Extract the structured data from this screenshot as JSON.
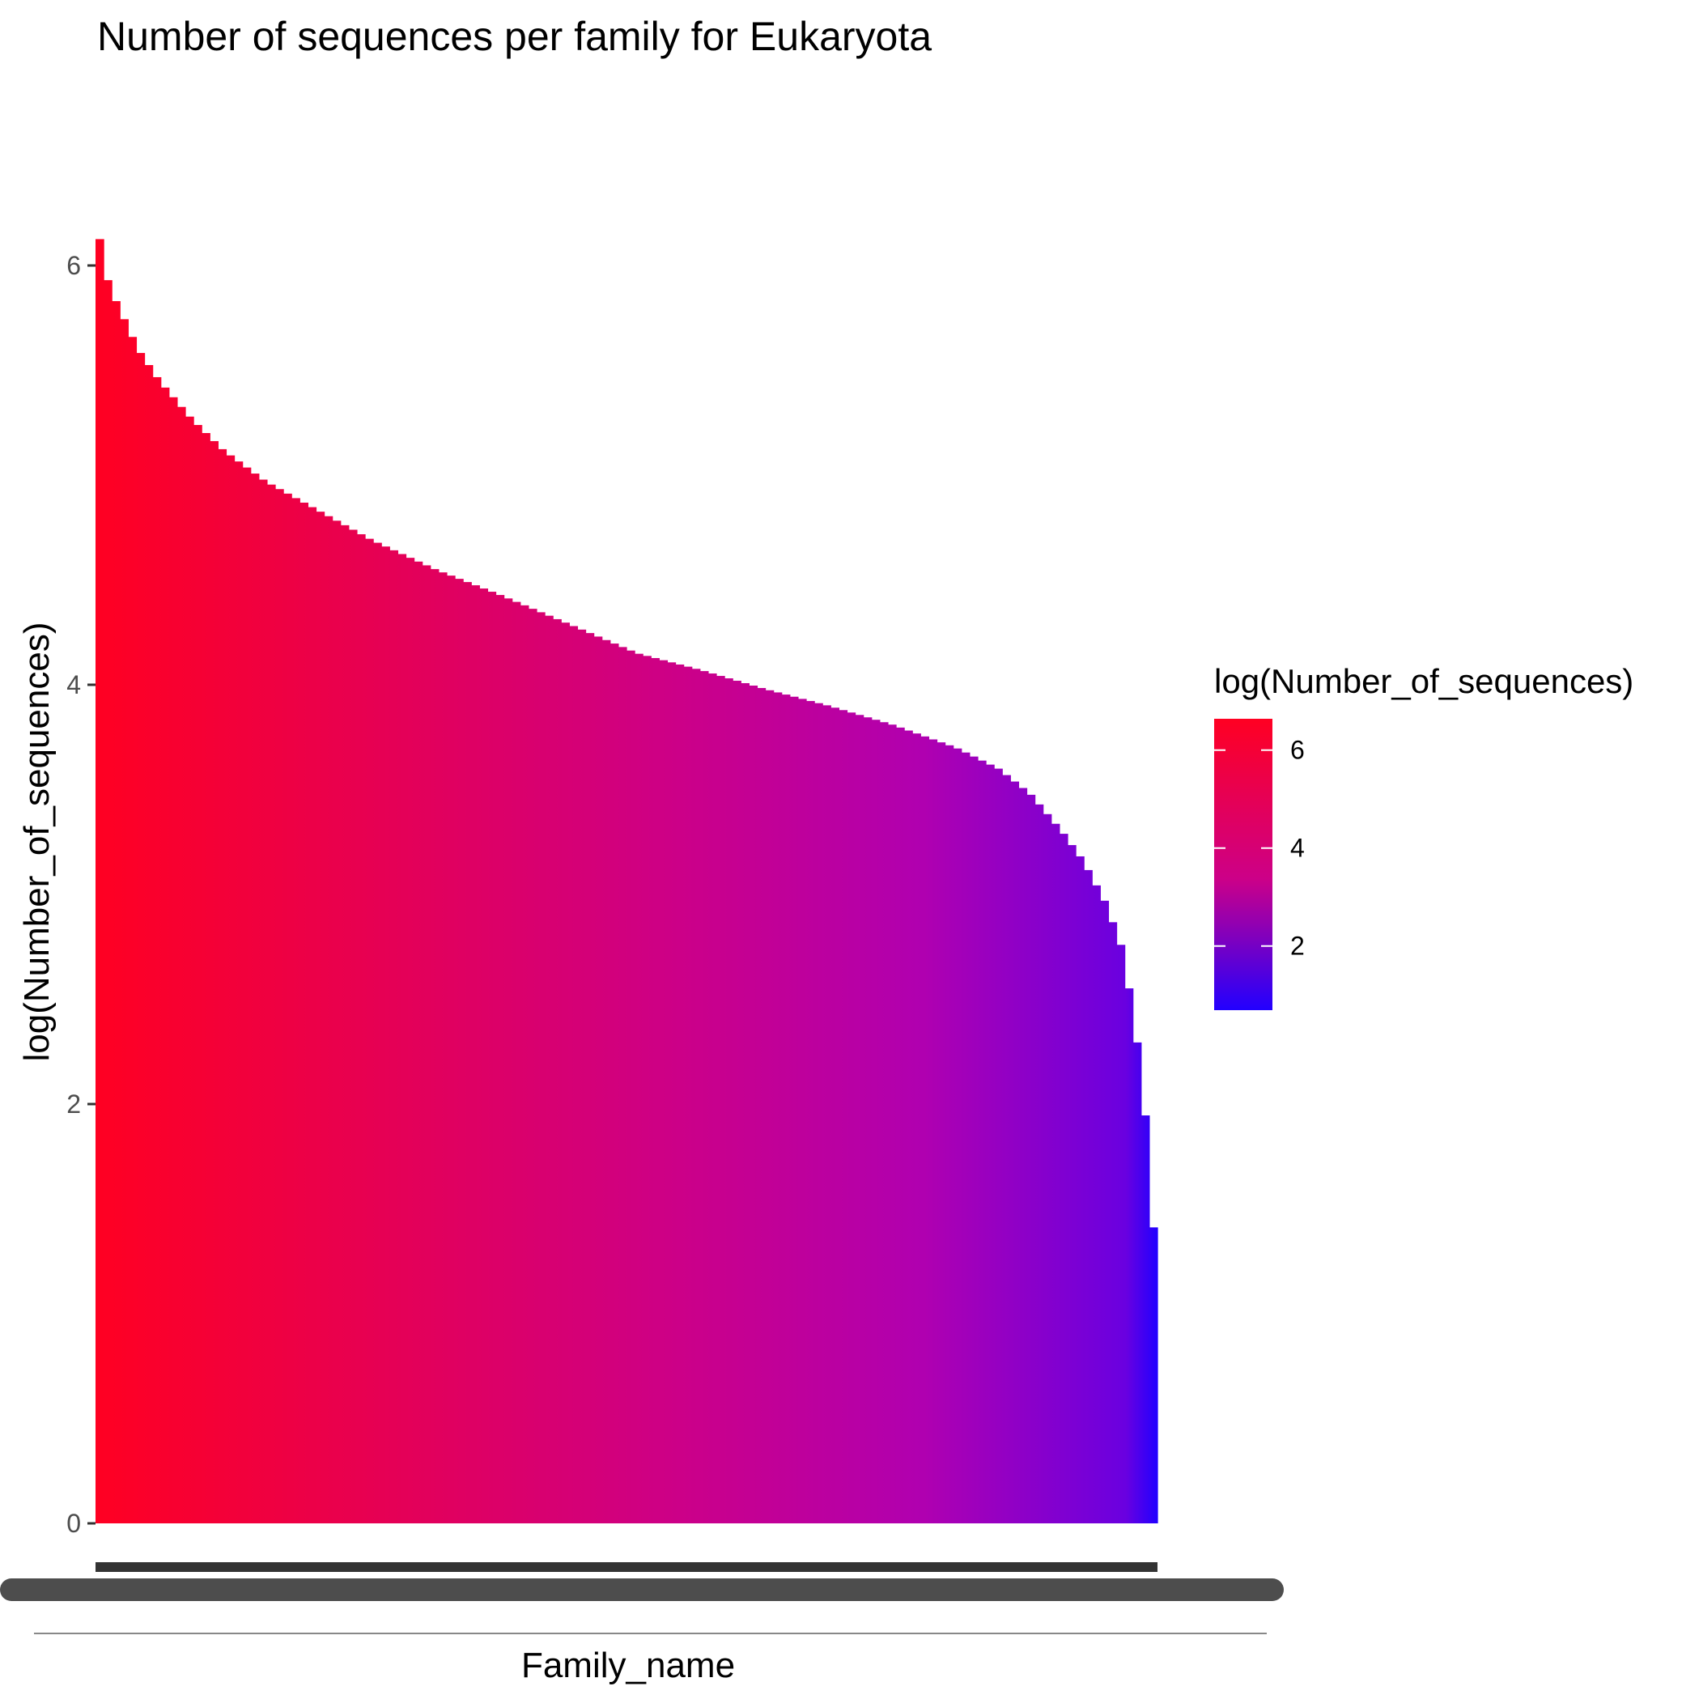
{
  "colors": {
    "high": "#ff0022",
    "mid": "#cc0088",
    "low": "#2200ff",
    "tick": "#333333",
    "axis_text": "#4d4d4d",
    "xticks_blob": "#4d4d4d"
  },
  "chart_data": {
    "type": "bar",
    "title": "Number of sequences per family for Eukaryota",
    "xlabel": "Family_name",
    "ylabel": "log(Number_of_sequences)",
    "ylim": [
      0,
      6.7
    ],
    "yticks": [
      "0",
      "2",
      "4",
      "6"
    ],
    "legend": {
      "title": "log(Number_of_sequences)",
      "labels": [
        "6",
        "4",
        "2"
      ],
      "range": [
        0.69,
        6.64
      ],
      "placement": "right"
    },
    "grid": false,
    "curve": [
      [
        0,
        6.64
      ],
      [
        0.3,
        6.15
      ],
      [
        1,
        5.95
      ],
      [
        2,
        5.82
      ],
      [
        4,
        5.6
      ],
      [
        6,
        5.45
      ],
      [
        9,
        5.27
      ],
      [
        12,
        5.12
      ],
      [
        16,
        4.97
      ],
      [
        21,
        4.83
      ],
      [
        26,
        4.69
      ],
      [
        32,
        4.55
      ],
      [
        38,
        4.43
      ],
      [
        45,
        4.28
      ],
      [
        51,
        4.15
      ],
      [
        57,
        4.07
      ],
      [
        63,
        3.98
      ],
      [
        69,
        3.9
      ],
      [
        75,
        3.81
      ],
      [
        81,
        3.7
      ],
      [
        85,
        3.6
      ],
      [
        88,
        3.48
      ],
      [
        91,
        3.3
      ],
      [
        93,
        3.16
      ],
      [
        95,
        2.97
      ],
      [
        96.5,
        2.77
      ],
      [
        97.5,
        2.5
      ],
      [
        98.2,
        2.25
      ],
      [
        98.8,
        1.98
      ],
      [
        99.3,
        1.61
      ],
      [
        99.65,
        1.39
      ],
      [
        99.9,
        1.1
      ],
      [
        100,
        0.69
      ]
    ]
  }
}
